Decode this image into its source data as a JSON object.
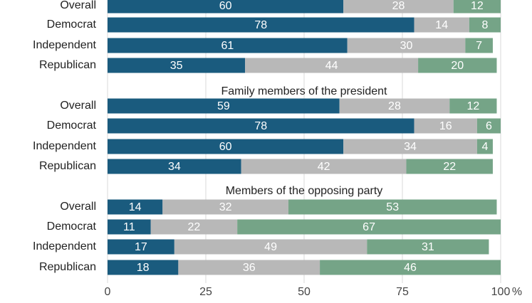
{
  "chart_data": {
    "type": "bar",
    "orientation": "horizontal",
    "stacked": true,
    "colors": [
      "#1a5b7e",
      "#b8b8b8",
      "#75a487"
    ],
    "xlim": [
      0,
      100
    ],
    "x_ticks": [
      "0",
      "25",
      "50",
      "75",
      "100"
    ],
    "x_unit": "%",
    "grid": true,
    "groups": [
      {
        "title": "",
        "categories": [
          "Overall",
          "Democrat",
          "Independent",
          "Republican"
        ],
        "series": [
          {
            "values": [
              60,
              78,
              61,
              35
            ]
          },
          {
            "values": [
              28,
              14,
              30,
              44
            ]
          },
          {
            "values": [
              12,
              8,
              7,
              20
            ]
          }
        ]
      },
      {
        "title": "Family members of the president",
        "categories": [
          "Overall",
          "Democrat",
          "Independent",
          "Republican"
        ],
        "series": [
          {
            "values": [
              59,
              78,
              60,
              34
            ]
          },
          {
            "values": [
              28,
              16,
              34,
              42
            ]
          },
          {
            "values": [
              12,
              6,
              4,
              22
            ]
          }
        ]
      },
      {
        "title": "Members of the opposing party",
        "categories": [
          "Overall",
          "Democrat",
          "Independent",
          "Republican"
        ],
        "series": [
          {
            "values": [
              14,
              11,
              17,
              18
            ]
          },
          {
            "values": [
              32,
              22,
              49,
              36
            ]
          },
          {
            "values": [
              53,
              67,
              31,
              46
            ]
          }
        ]
      }
    ]
  }
}
